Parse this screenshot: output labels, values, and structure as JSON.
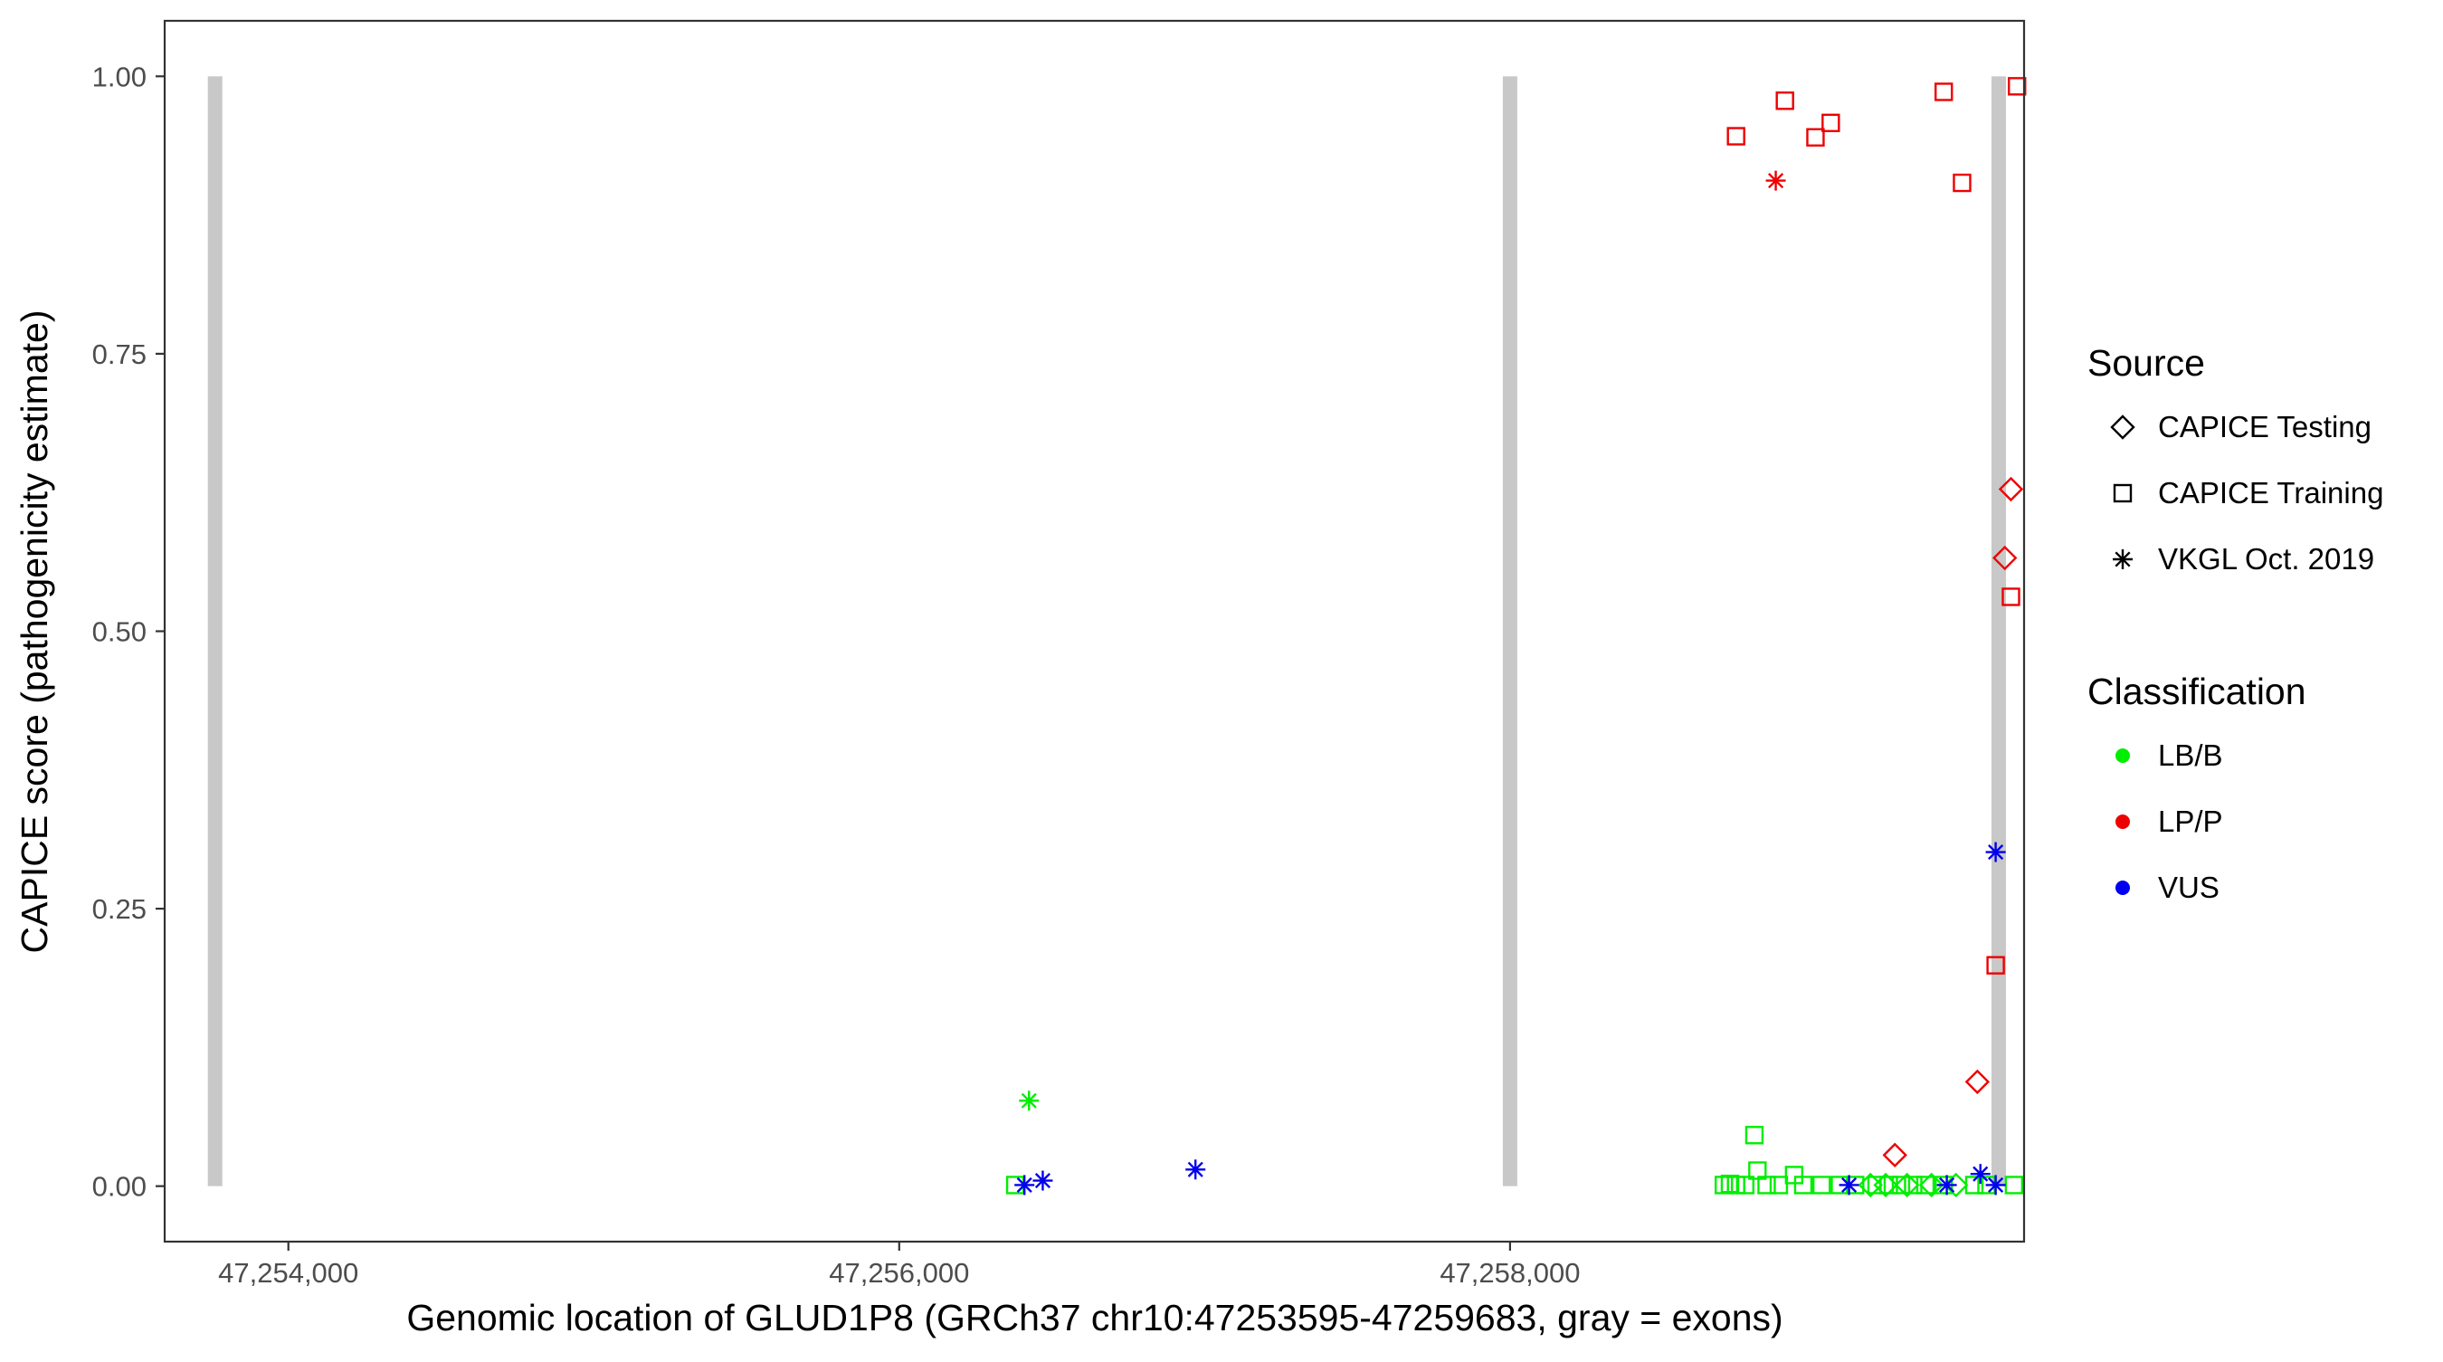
{
  "chart_data": {
    "type": "scatter",
    "title": "",
    "xlabel": "Genomic location of GLUD1P8 (GRCh37 chr10:47253595-47259683, gray = exons)",
    "ylabel": "CAPICE score (pathogenicity estimate)",
    "xlim": [
      47253595,
      47259683
    ],
    "ylim": [
      -0.05,
      1.05
    ],
    "x_ticks": [
      47254000,
      47256000,
      47258000
    ],
    "x_tick_labels": [
      "47,254,000",
      "47,256,000",
      "47,258,000"
    ],
    "y_ticks": [
      0,
      0.25,
      0.5,
      0.75,
      1.0
    ],
    "y_tick_labels": [
      "0.00",
      "0.25",
      "0.50",
      "0.75",
      "1.00"
    ],
    "grid": false,
    "exons_x": [
      47253760,
      47258000,
      47259600
    ],
    "exon_color": "#c8c8c8",
    "legend_position": "right",
    "legends": {
      "source": {
        "title": "Source",
        "items": [
          {
            "label": "CAPICE Testing",
            "shape": "diamond"
          },
          {
            "label": "CAPICE Training",
            "shape": "square"
          },
          {
            "label": "VKGL Oct. 2019",
            "shape": "asterisk"
          }
        ]
      },
      "classification": {
        "title": "Classification",
        "items": [
          {
            "label": "LB/B",
            "color": "#00ee00"
          },
          {
            "label": "LP/P",
            "color": "#ee0000"
          },
          {
            "label": "VUS",
            "color": "#0000ee"
          }
        ]
      }
    },
    "colors": {
      "LB/B": "#00ee00",
      "LP/P": "#ee0000",
      "VUS": "#0000ee"
    },
    "points": [
      {
        "x": 47258740,
        "y": 0.946,
        "source": "CAPICE Training",
        "class": "LP/P"
      },
      {
        "x": 47258900,
        "y": 0.978,
        "source": "CAPICE Training",
        "class": "LP/P"
      },
      {
        "x": 47259000,
        "y": 0.945,
        "source": "CAPICE Training",
        "class": "LP/P"
      },
      {
        "x": 47259050,
        "y": 0.958,
        "source": "CAPICE Training",
        "class": "LP/P"
      },
      {
        "x": 47259420,
        "y": 0.986,
        "source": "CAPICE Training",
        "class": "LP/P"
      },
      {
        "x": 47259480,
        "y": 0.904,
        "source": "CAPICE Training",
        "class": "LP/P"
      },
      {
        "x": 47259660,
        "y": 0.991,
        "source": "CAPICE Training",
        "class": "LP/P"
      },
      {
        "x": 47259640,
        "y": 0.531,
        "source": "CAPICE Training",
        "class": "LP/P"
      },
      {
        "x": 47259590,
        "y": 0.199,
        "source": "CAPICE Training",
        "class": "LP/P"
      },
      {
        "x": 47258870,
        "y": 0.906,
        "source": "VKGL Oct. 2019",
        "class": "LP/P"
      },
      {
        "x": 47259640,
        "y": 0.628,
        "source": "CAPICE Testing",
        "class": "LP/P"
      },
      {
        "x": 47259620,
        "y": 0.566,
        "source": "CAPICE Testing",
        "class": "LP/P"
      },
      {
        "x": 47259530,
        "y": 0.094,
        "source": "CAPICE Testing",
        "class": "LP/P"
      },
      {
        "x": 47259260,
        "y": 0.028,
        "source": "CAPICE Testing",
        "class": "LP/P"
      },
      {
        "x": 47256425,
        "y": 0.077,
        "source": "VKGL Oct. 2019",
        "class": "LB/B"
      },
      {
        "x": 47258800,
        "y": 0.046,
        "source": "CAPICE Training",
        "class": "LB/B"
      },
      {
        "x": 47258810,
        "y": 0.014,
        "source": "CAPICE Training",
        "class": "LB/B"
      },
      {
        "x": 47258930,
        "y": 0.01,
        "source": "CAPICE Training",
        "class": "LB/B"
      },
      {
        "x": 47256380,
        "y": 0.001,
        "source": "CAPICE Training",
        "class": "LB/B"
      },
      {
        "x": 47258700,
        "y": 0.001,
        "source": "CAPICE Training",
        "class": "LB/B"
      },
      {
        "x": 47258720,
        "y": 0.002,
        "source": "CAPICE Training",
        "class": "LB/B"
      },
      {
        "x": 47258740,
        "y": 0.001,
        "source": "CAPICE Training",
        "class": "LB/B"
      },
      {
        "x": 47258770,
        "y": 0.001,
        "source": "CAPICE Training",
        "class": "LB/B"
      },
      {
        "x": 47258840,
        "y": 0.001,
        "source": "CAPICE Training",
        "class": "LB/B"
      },
      {
        "x": 47258880,
        "y": 0.001,
        "source": "CAPICE Training",
        "class": "LB/B"
      },
      {
        "x": 47258960,
        "y": 0.001,
        "source": "CAPICE Training",
        "class": "LB/B"
      },
      {
        "x": 47259020,
        "y": 0.001,
        "source": "CAPICE Training",
        "class": "LB/B"
      },
      {
        "x": 47259080,
        "y": 0.001,
        "source": "CAPICE Training",
        "class": "LB/B"
      },
      {
        "x": 47259130,
        "y": 0.001,
        "source": "CAPICE Training",
        "class": "LB/B"
      },
      {
        "x": 47259200,
        "y": 0.001,
        "source": "CAPICE Training",
        "class": "LB/B"
      },
      {
        "x": 47259240,
        "y": 0.001,
        "source": "CAPICE Training",
        "class": "LB/B"
      },
      {
        "x": 47259280,
        "y": 0.001,
        "source": "CAPICE Training",
        "class": "LB/B"
      },
      {
        "x": 47259320,
        "y": 0.001,
        "source": "CAPICE Training",
        "class": "LB/B"
      },
      {
        "x": 47259360,
        "y": 0.001,
        "source": "CAPICE Training",
        "class": "LB/B"
      },
      {
        "x": 47259420,
        "y": 0.001,
        "source": "CAPICE Training",
        "class": "LB/B"
      },
      {
        "x": 47259520,
        "y": 0.001,
        "source": "CAPICE Training",
        "class": "LB/B"
      },
      {
        "x": 47259560,
        "y": 0.001,
        "source": "CAPICE Training",
        "class": "LB/B"
      },
      {
        "x": 47259650,
        "y": 0.001,
        "source": "CAPICE Training",
        "class": "LB/B"
      },
      {
        "x": 47259180,
        "y": 0.001,
        "source": "CAPICE Testing",
        "class": "LB/B"
      },
      {
        "x": 47259230,
        "y": 0.001,
        "source": "CAPICE Testing",
        "class": "LB/B"
      },
      {
        "x": 47259300,
        "y": 0.001,
        "source": "CAPICE Testing",
        "class": "LB/B"
      },
      {
        "x": 47259380,
        "y": 0.001,
        "source": "CAPICE Testing",
        "class": "LB/B"
      },
      {
        "x": 47259460,
        "y": 0.001,
        "source": "CAPICE Testing",
        "class": "LB/B"
      },
      {
        "x": 47256410,
        "y": 0.001,
        "source": "VKGL Oct. 2019",
        "class": "VUS"
      },
      {
        "x": 47256470,
        "y": 0.005,
        "source": "VKGL Oct. 2019",
        "class": "VUS"
      },
      {
        "x": 47256970,
        "y": 0.015,
        "source": "VKGL Oct. 2019",
        "class": "VUS"
      },
      {
        "x": 47259590,
        "y": 0.301,
        "source": "VKGL Oct. 2019",
        "class": "VUS"
      },
      {
        "x": 47259110,
        "y": 0.001,
        "source": "VKGL Oct. 2019",
        "class": "VUS"
      },
      {
        "x": 47259430,
        "y": 0.001,
        "source": "VKGL Oct. 2019",
        "class": "VUS"
      },
      {
        "x": 47259540,
        "y": 0.011,
        "source": "VKGL Oct. 2019",
        "class": "VUS"
      },
      {
        "x": 47259590,
        "y": 0.001,
        "source": "VKGL Oct. 2019",
        "class": "VUS"
      }
    ]
  }
}
